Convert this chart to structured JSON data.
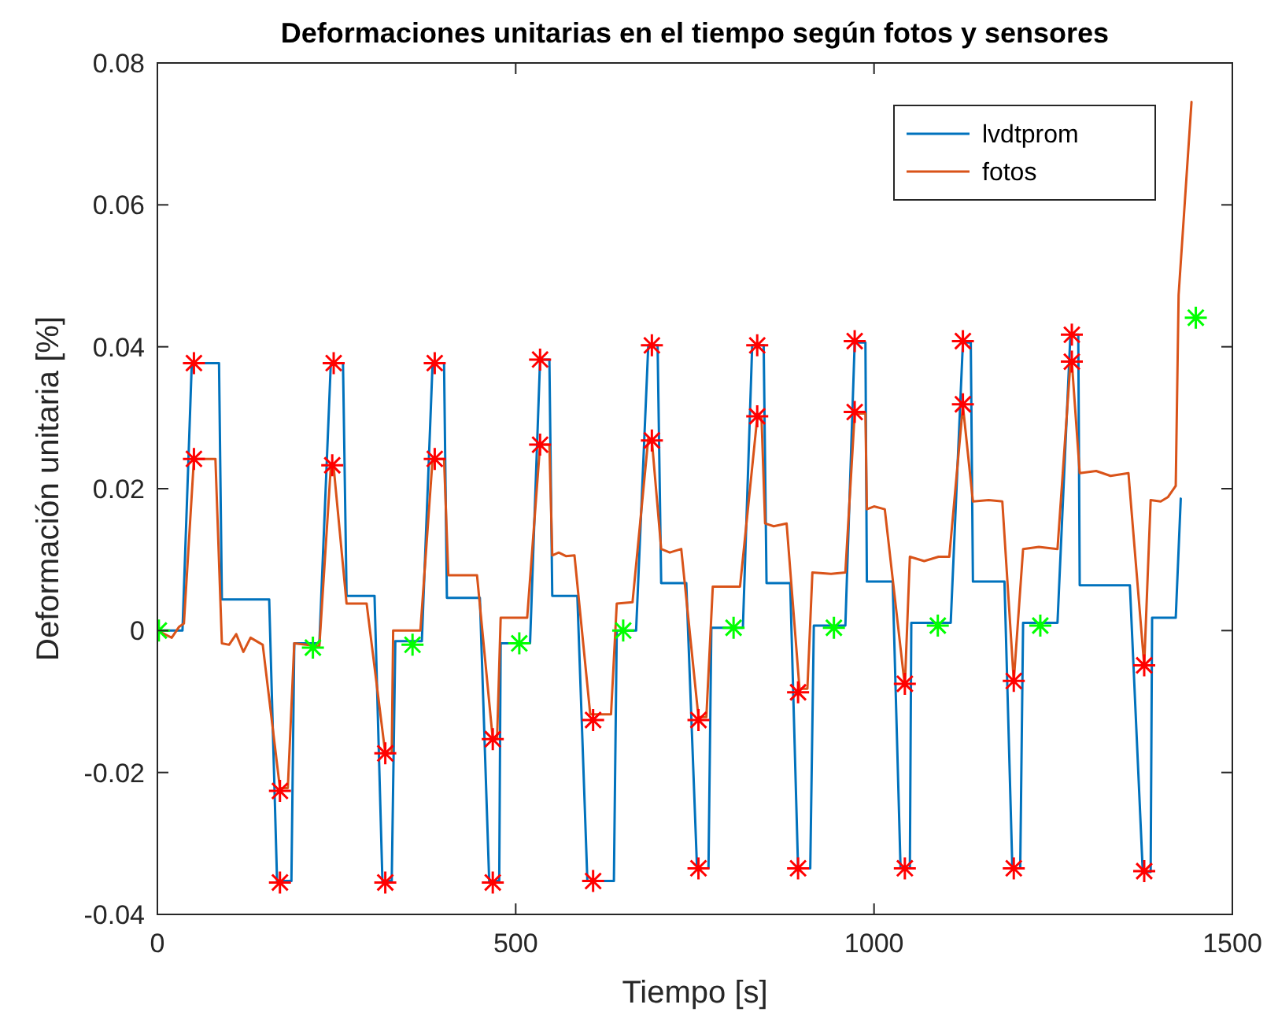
{
  "chart_data": {
    "type": "line",
    "title": "Deformaciones unitarias en el tiempo según fotos y sensores",
    "xlabel": "Tiempo [s]",
    "ylabel": "Deformación unitaria [%]",
    "xlim": [
      0,
      1500
    ],
    "xticks": [
      0,
      500,
      1000,
      1500
    ],
    "ylim": [
      -0.04,
      0.08
    ],
    "yticks": [
      -0.04,
      -0.02,
      0,
      0.02,
      0.04,
      0.06,
      0.08
    ],
    "grid": false,
    "legend": "top right",
    "marker": "none",
    "line_style": "solid",
    "series": [
      {
        "name": "lvdtprom",
        "color": "#0072bd",
        "x": [
          0,
          35,
          48,
          86,
          90,
          156,
          167,
          187,
          191,
          226,
          242,
          259,
          264,
          303,
          314,
          327,
          332,
          369,
          384,
          400,
          404,
          450,
          463,
          477,
          479,
          520,
          534,
          547,
          551,
          586,
          600,
          637,
          641,
          668,
          685,
          698,
          703,
          738,
          753,
          769,
          773,
          817,
          830,
          846,
          850,
          883,
          894,
          911,
          916,
          960,
          973,
          988,
          990,
          1026,
          1037,
          1050,
          1052,
          1107,
          1124,
          1135,
          1138,
          1182,
          1193,
          1204,
          1208,
          1256,
          1274,
          1285,
          1287,
          1357,
          1375,
          1386,
          1388,
          1421,
          1428
        ],
        "values": [
          0,
          0,
          0.0377,
          0.0377,
          0.0044,
          0.0044,
          -0.0353,
          -0.0353,
          -0.0018,
          -0.0018,
          0.0377,
          0.0377,
          0.0049,
          0.0049,
          -0.0353,
          -0.0353,
          -0.0015,
          -0.0015,
          0.0377,
          0.0377,
          0.0046,
          0.0046,
          -0.0353,
          -0.0353,
          -0.0018,
          -0.0018,
          0.0382,
          0.0382,
          0.0049,
          0.0049,
          -0.0353,
          -0.0353,
          0,
          0,
          0.0402,
          0.0402,
          0.0067,
          0.0067,
          -0.0335,
          -0.0335,
          0.0004,
          0.0004,
          0.0402,
          0.0402,
          0.0067,
          0.0067,
          -0.0335,
          -0.0335,
          0.0007,
          0.0007,
          0.0406,
          0.0406,
          0.0069,
          0.0069,
          -0.0335,
          -0.0335,
          0.0011,
          0.0011,
          0.0406,
          0.0406,
          0.0069,
          0.0069,
          -0.0335,
          -0.0335,
          0.0011,
          0.0011,
          0.0417,
          0.0417,
          0.0064,
          0.0064,
          -0.034,
          -0.034,
          0.0018,
          0.0018,
          0.0186
        ]
      },
      {
        "name": "fotos",
        "color": "#d95319",
        "x": [
          0,
          20,
          30,
          37,
          51,
          81,
          90,
          100,
          110,
          120,
          130,
          147,
          171,
          182,
          191,
          226,
          242,
          246,
          264,
          292,
          318,
          327,
          329,
          367,
          384,
          400,
          406,
          446,
          468,
          474,
          479,
          516,
          534,
          547,
          551,
          560,
          570,
          582,
          604,
          633,
          641,
          663,
          685,
          690,
          703,
          715,
          731,
          755,
          766,
          775,
          813,
          837,
          843,
          848,
          860,
          878,
          896,
          907,
          914,
          940,
          960,
          973,
          988,
          990,
          1000,
          1015,
          1043,
          1050,
          1070,
          1090,
          1105,
          1124,
          1138,
          1160,
          1179,
          1195,
          1208,
          1230,
          1256,
          1274,
          1276,
          1287,
          1310,
          1330,
          1355,
          1377,
          1386,
          1400,
          1410,
          1421,
          1425,
          1443
        ],
        "values": [
          0,
          -0.001,
          0.0005,
          0.001,
          0.0242,
          0.0242,
          -0.0018,
          -0.002,
          -0.0005,
          -0.003,
          -0.001,
          -0.002,
          -0.0222,
          -0.0222,
          -0.0018,
          -0.0022,
          0.0231,
          0.023,
          0.0038,
          0.0038,
          -0.0173,
          -0.0173,
          0,
          0,
          0.0242,
          0.0242,
          0.0078,
          0.0078,
          -0.0153,
          -0.0153,
          0.0018,
          0.0018,
          0.0262,
          0.0262,
          0.0106,
          0.011,
          0.0105,
          0.0106,
          -0.0118,
          -0.0118,
          0.0038,
          0.004,
          0.0271,
          0.0268,
          0.0115,
          0.011,
          0.0115,
          -0.0122,
          -0.0122,
          0.0062,
          0.0062,
          0.03,
          0.03,
          0.0151,
          0.0147,
          0.0151,
          -0.0082,
          -0.0082,
          0.0082,
          0.008,
          0.0082,
          0.0306,
          0.0306,
          0.0171,
          0.0175,
          0.0171,
          -0.0078,
          0.0104,
          0.0098,
          0.0104,
          0.0104,
          0.0317,
          0.0182,
          0.0184,
          0.0182,
          -0.0071,
          0.0115,
          0.0118,
          0.0115,
          0.0377,
          0.0379,
          0.0222,
          0.0225,
          0.0218,
          0.0222,
          -0.0049,
          0.0184,
          0.0182,
          0.0188,
          0.0204,
          0.0473,
          0.0745
        ]
      },
      {
        "type": "scatter",
        "marker": "cross",
        "color": "#ff0000",
        "x": [
          51,
          51,
          171,
          171,
          246,
          244,
          318,
          318,
          387,
          387,
          468,
          468,
          534,
          534,
          608,
          608,
          690,
          690,
          755,
          755,
          837,
          837,
          894,
          894,
          973,
          973,
          1043,
          1043,
          1124,
          1124,
          1195,
          1195,
          1276,
          1276,
          1377,
          1377
        ],
        "values": [
          0.0377,
          0.0242,
          -0.0226,
          -0.0355,
          0.0377,
          0.0233,
          -0.0173,
          -0.0355,
          0.0377,
          0.0242,
          -0.0153,
          -0.0355,
          0.0382,
          0.0262,
          -0.0126,
          -0.0353,
          0.0402,
          0.0268,
          -0.0126,
          -0.0335,
          0.0402,
          0.0302,
          -0.0087,
          -0.0335,
          0.0408,
          0.0308,
          -0.0075,
          -0.0335,
          0.0408,
          0.0319,
          -0.0071,
          -0.0335,
          0.0417,
          0.0379,
          -0.0049,
          -0.0339
        ]
      },
      {
        "type": "scatter",
        "marker": "cross",
        "color": "#00ff00",
        "x": [
          2,
          217,
          356,
          505,
          650,
          804,
          944,
          1089,
          1232,
          1449
        ],
        "values": [
          0,
          -0.0024,
          -0.002,
          -0.0018,
          0,
          0.0004,
          0.0004,
          0.0007,
          0.0007,
          0.0441
        ]
      }
    ]
  }
}
